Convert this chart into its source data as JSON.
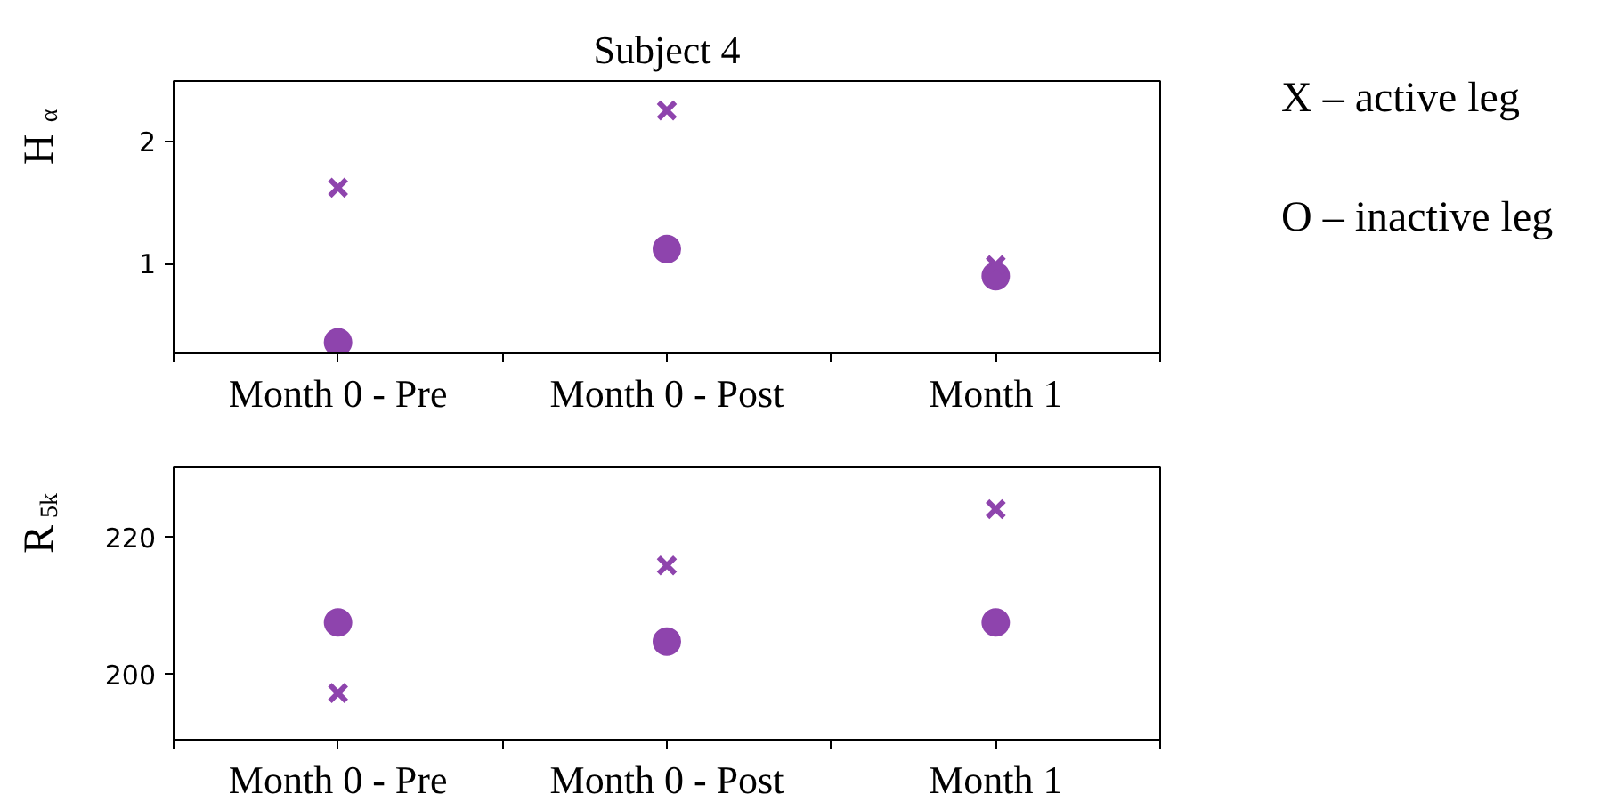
{
  "chart_data": [
    {
      "type": "scatter",
      "title": "Subject 4",
      "ylabel": "H$_{α}$",
      "categories": [
        null,
        "Month 0 - Pre",
        null,
        "Month 0 - Post",
        null,
        "Month 1",
        null
      ],
      "ylim": [
        0.27,
        2.49
      ],
      "yticks": [
        1,
        2
      ],
      "grid": false,
      "annotations": [
        "X – active leg",
        "O – inactive leg"
      ],
      "series": [
        {
          "color": "#8e44ad",
          "marker": "cross",
          "values": [
            null,
            1.62,
            null,
            2.25,
            null,
            0.99,
            null
          ]
        },
        {
          "color": "#8e44ad",
          "marker": "circle",
          "values": [
            null,
            0.36,
            null,
            1.12,
            null,
            0.9,
            null
          ]
        }
      ]
    },
    {
      "type": "scatter",
      "ylabel": "R$_{5k}$",
      "categories": [
        null,
        "Month 0 - Pre",
        null,
        "Month 0 - Post",
        null,
        "Month 1",
        null
      ],
      "ylim": [
        190.5,
        230.2
      ],
      "yticks": [
        200,
        220
      ],
      "grid": false,
      "series": [
        {
          "color": "#8e44ad",
          "marker": "cross",
          "values": [
            null,
            197.3,
            null,
            215.9,
            null,
            224.1,
            null
          ]
        },
        {
          "color": "#8e44ad",
          "marker": "circle",
          "values": [
            null,
            207.6,
            null,
            204.8,
            null,
            207.6,
            null
          ]
        }
      ]
    }
  ]
}
